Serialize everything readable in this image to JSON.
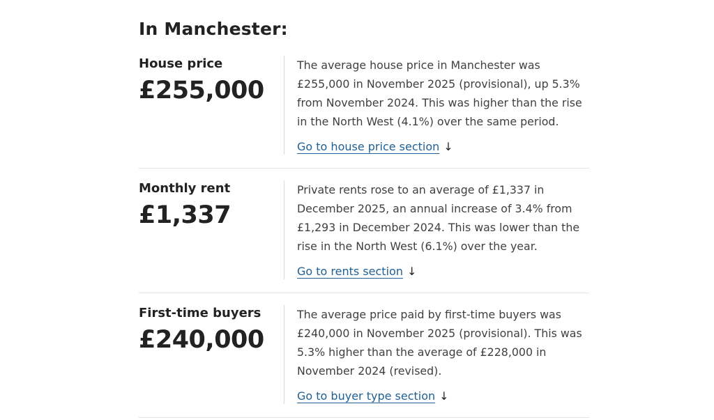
{
  "page": {
    "heading": "In Manchester:"
  },
  "sections": [
    {
      "label": "House price",
      "value": "£255,000",
      "description": "The average house price in Manchester was £255,000 in November 2025 (provisional), up 5.3% from November 2024. This was higher than the rise in the North West (4.1%) over the same period.",
      "link_label": "Go to house price section"
    },
    {
      "label": "Monthly rent",
      "value": "£1,337",
      "description": "Private rents rose to an average of £1,337 in December 2025, an annual increase of 3.4% from £1,293 in December 2024. This was lower than the rise in the North West (6.1%) over the year.",
      "link_label": "Go to rents section"
    },
    {
      "label": "First-time buyers",
      "value": "£240,000",
      "description": "The average price paid by first-time buyers was £240,000 in November 2025 (provisional). This was 5.3% higher than the average of £228,000 in November 2024 (revised).",
      "link_label": "Go to buyer type section"
    }
  ],
  "ui": {
    "link_arrow": "↓"
  },
  "colors": {
    "link": "#206095",
    "heading_text": "#222222",
    "body_text": "#404040",
    "horizontal_divider": "#e4e4e4",
    "vertical_divider": "#d9d9d9",
    "background": "#ffffff"
  }
}
